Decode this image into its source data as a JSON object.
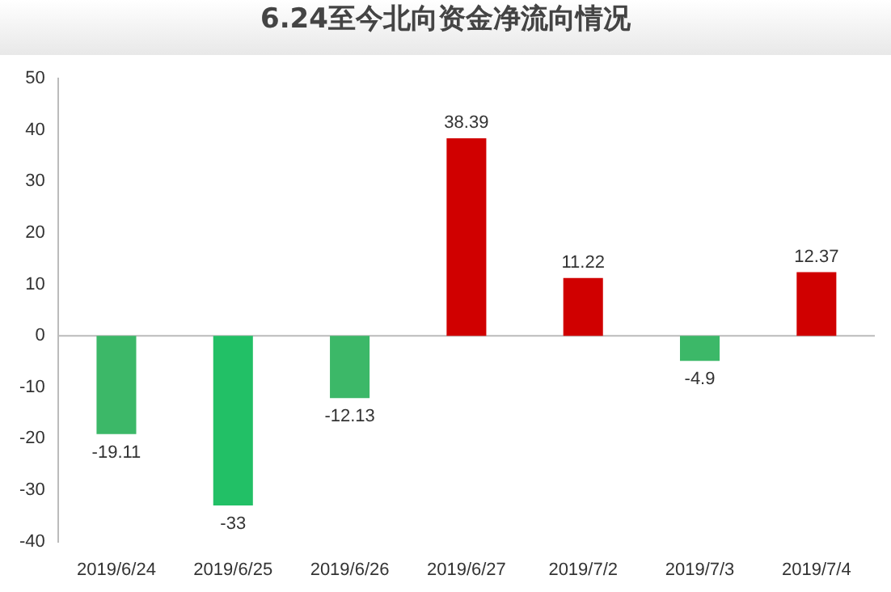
{
  "chart_data": {
    "type": "bar",
    "title": "6.24至今北向资金净流向情况",
    "categories": [
      "2019/6/24",
      "2019/6/25",
      "2019/6/26",
      "2019/6/27",
      "2019/7/2",
      "2019/7/3",
      "2019/7/4"
    ],
    "values": [
      -19.11,
      -33,
      -12.13,
      38.39,
      11.22,
      -4.9,
      12.37
    ],
    "colors": [
      "#3cb868",
      "#22c066",
      "#3cb868",
      "#d00000",
      "#d00000",
      "#3cb868",
      "#d00000"
    ],
    "ylim": [
      -40,
      50
    ],
    "yticks": [
      -40,
      -30,
      -20,
      -10,
      0,
      10,
      20,
      30,
      40,
      50
    ],
    "grid": false,
    "legend": false,
    "data_labels": true,
    "ref_lines": [
      {
        "axis": "y",
        "value": 0,
        "color": "#bbbbbb"
      }
    ]
  }
}
